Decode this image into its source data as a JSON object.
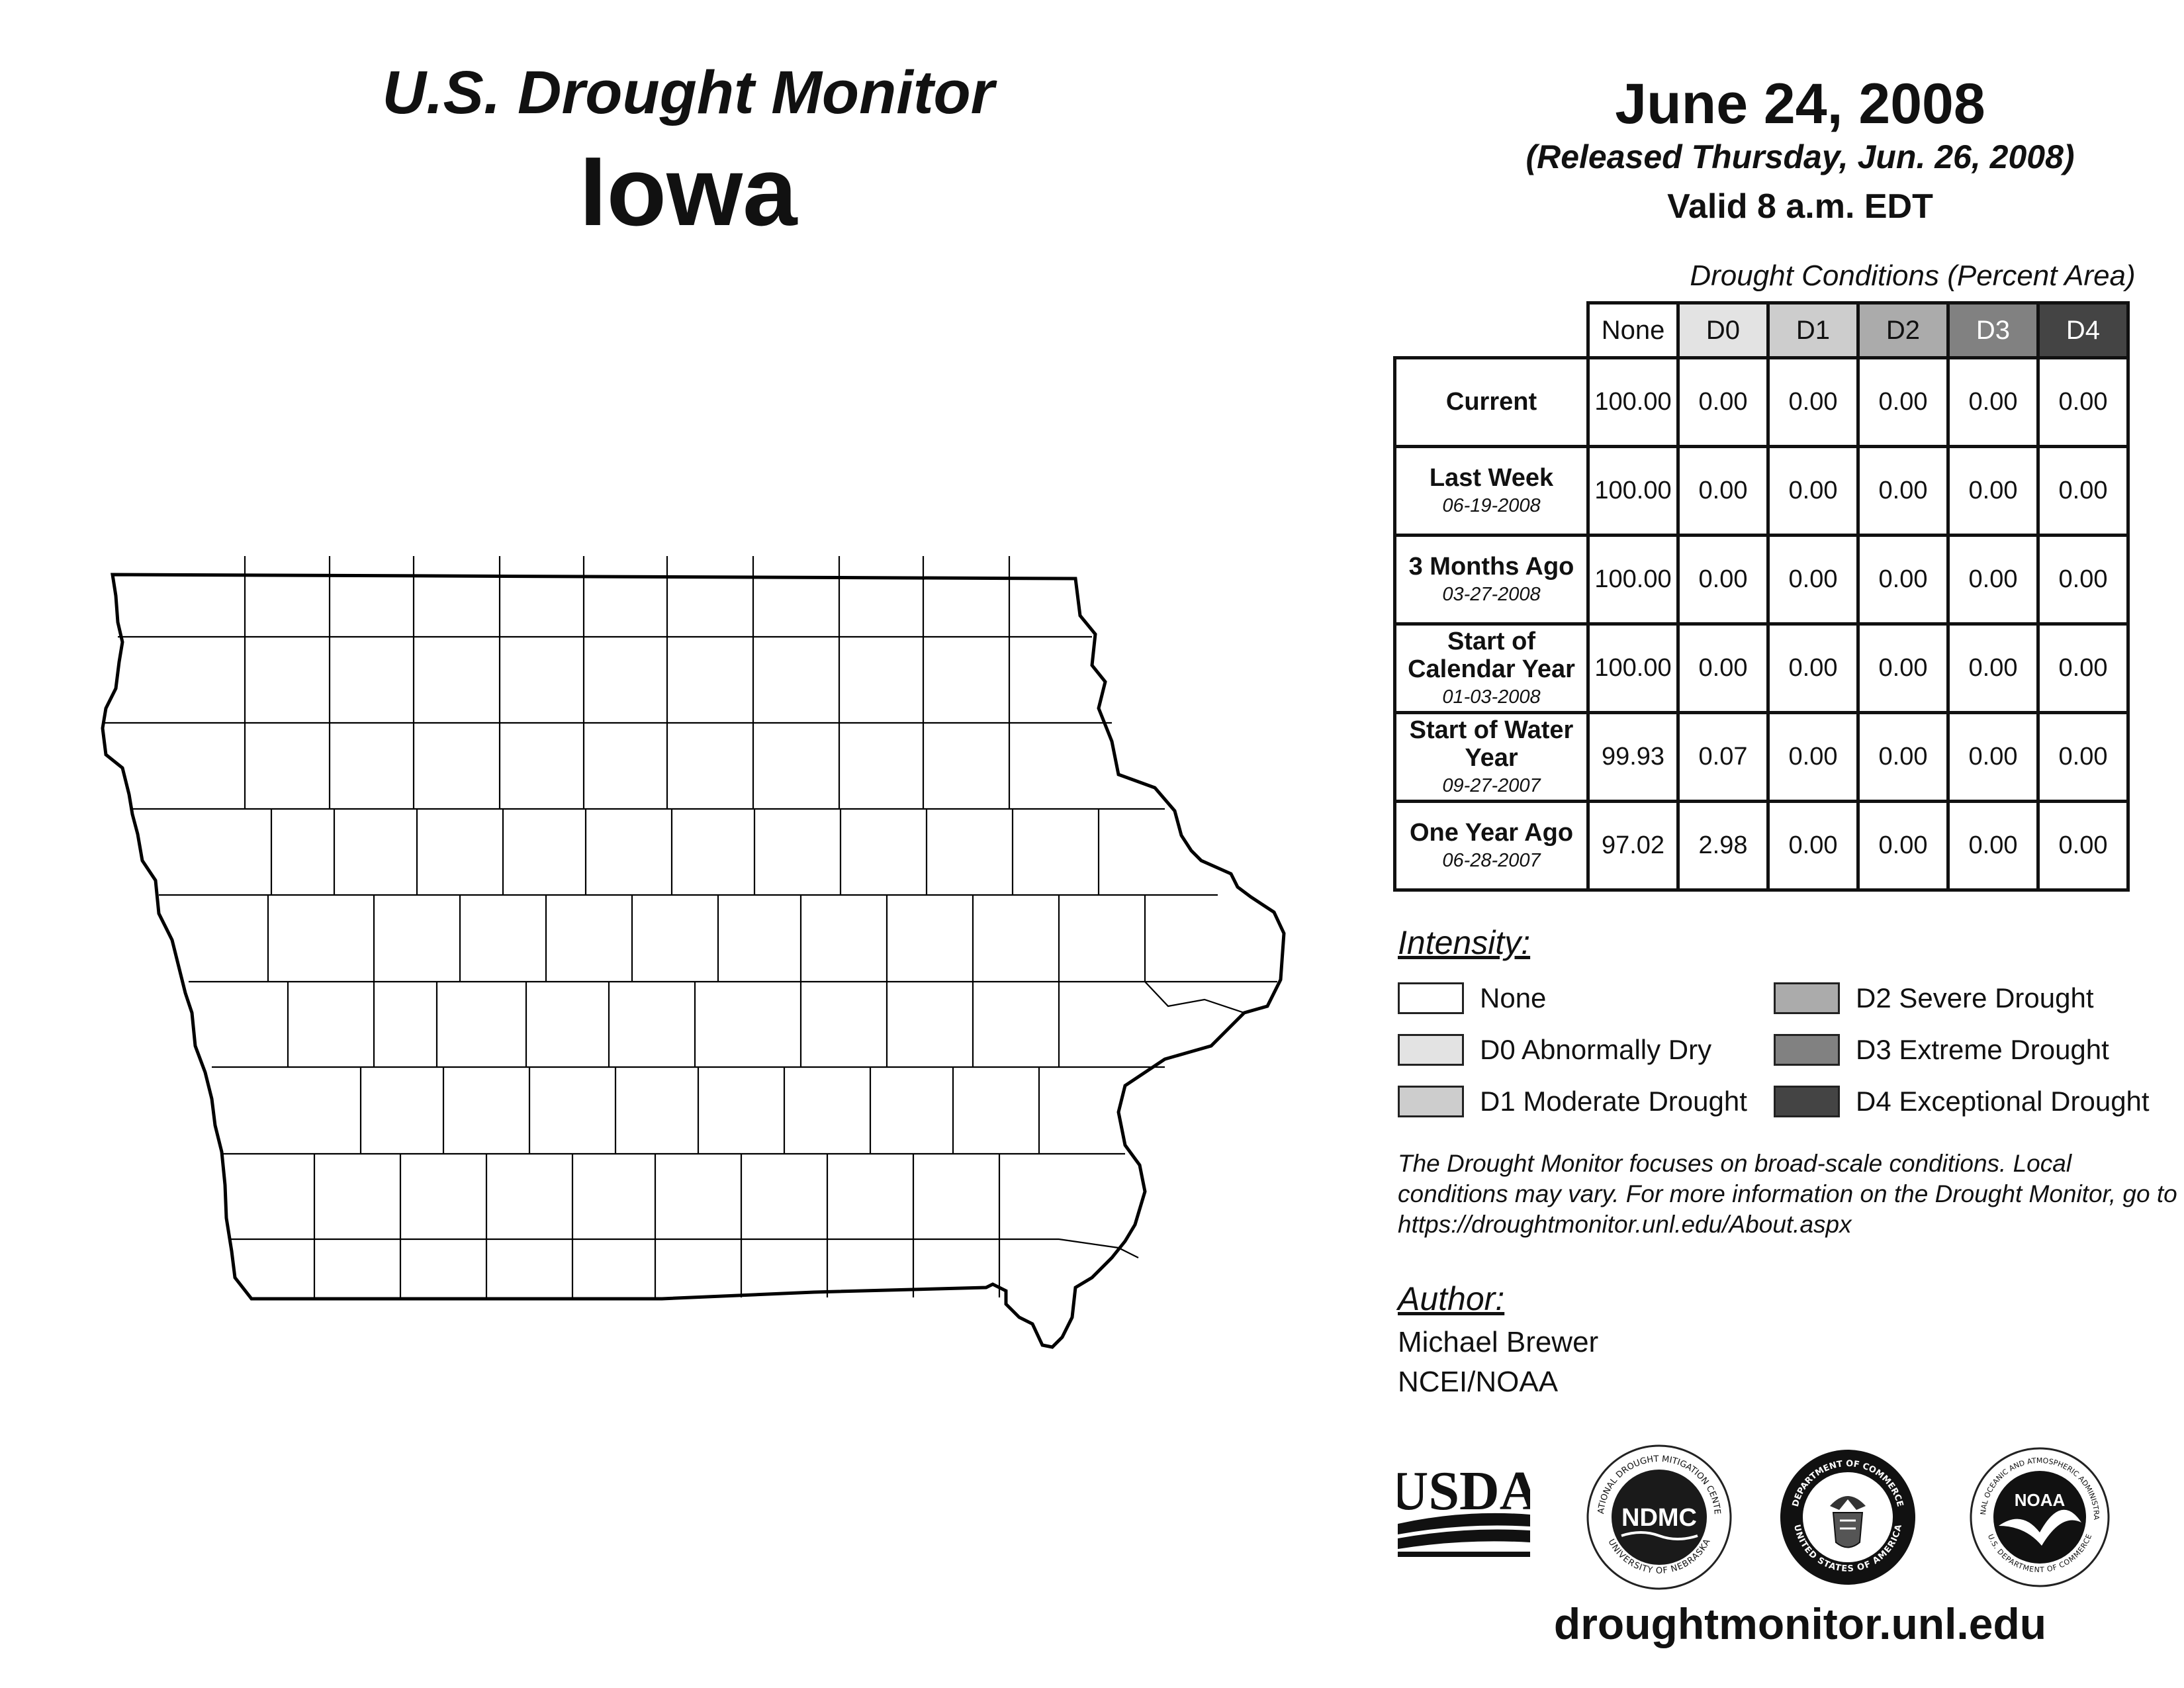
{
  "header": {
    "title": "U.S. Drought Monitor",
    "state": "Iowa",
    "date": "June 24, 2008",
    "released": "(Released Thursday, Jun. 26, 2008)",
    "valid": "Valid 8 a.m. EDT"
  },
  "table": {
    "caption": "Drought Conditions (Percent Area)",
    "columns": [
      "None",
      "D0",
      "D1",
      "D2",
      "D3",
      "D4"
    ],
    "rows": [
      {
        "label": "Current",
        "date": "",
        "values": [
          "100.00",
          "0.00",
          "0.00",
          "0.00",
          "0.00",
          "0.00"
        ]
      },
      {
        "label": "Last Week",
        "date": "06-19-2008",
        "values": [
          "100.00",
          "0.00",
          "0.00",
          "0.00",
          "0.00",
          "0.00"
        ]
      },
      {
        "label": "3 Months Ago",
        "date": "03-27-2008",
        "values": [
          "100.00",
          "0.00",
          "0.00",
          "0.00",
          "0.00",
          "0.00"
        ]
      },
      {
        "label": "Start of Calendar Year",
        "date": "01-03-2008",
        "values": [
          "100.00",
          "0.00",
          "0.00",
          "0.00",
          "0.00",
          "0.00"
        ]
      },
      {
        "label": "Start of Water Year",
        "date": "09-27-2007",
        "values": [
          "99.93",
          "0.07",
          "0.00",
          "0.00",
          "0.00",
          "0.00"
        ]
      },
      {
        "label": "One Year Ago",
        "date": "06-28-2007",
        "values": [
          "97.02",
          "2.98",
          "0.00",
          "0.00",
          "0.00",
          "0.00"
        ]
      }
    ]
  },
  "legend": {
    "heading": "Intensity:",
    "items": [
      {
        "label": "None",
        "color": "#ffffff"
      },
      {
        "label": "D0 Abnormally Dry",
        "color": "#e3e3e3"
      },
      {
        "label": "D1 Moderate Drought",
        "color": "#cdcdcd"
      },
      {
        "label": "D2 Severe Drought",
        "color": "#ababab"
      },
      {
        "label": "D3 Extreme Drought",
        "color": "#818181"
      },
      {
        "label": "D4 Exceptional Drought",
        "color": "#444444"
      }
    ]
  },
  "note": "The Drought Monitor focuses on broad-scale conditions. Local conditions may vary. For more information on the Drought Monitor, go to https://droughtmonitor.unl.edu/About.aspx",
  "author": {
    "heading": "Author:",
    "name": "Michael Brewer",
    "org": "NCEI/NOAA"
  },
  "logos": {
    "usda": "USDA",
    "ndmc": "NDMC",
    "ndmc_ring_top": "NATIONAL DROUGHT MITIGATION CENTER",
    "ndmc_ring_bottom": "UNIVERSITY OF NEBRASKA",
    "doc_ring_top": "DEPARTMENT OF COMMERCE",
    "doc_ring_bottom": "UNITED STATES OF AMERICA",
    "noaa": "NOAA",
    "noaa_ring_top": "NATIONAL OCEANIC AND ATMOSPHERIC ADMINISTRATION",
    "noaa_ring_bottom": "U.S. DEPARTMENT OF COMMERCE"
  },
  "website": "droughtmonitor.unl.edu"
}
